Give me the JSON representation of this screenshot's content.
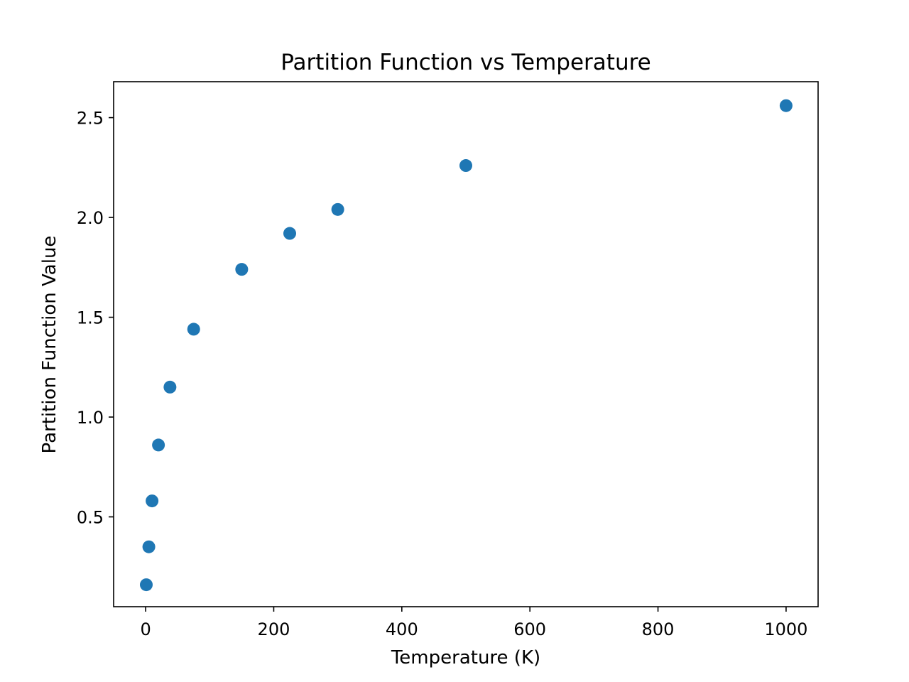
{
  "chart_data": {
    "type": "scatter",
    "title": "Partition Function vs Temperature",
    "xlabel": "Temperature (K)",
    "ylabel": "Partition Function Value",
    "xlim": [
      -50,
      1050
    ],
    "ylim": [
      0.05,
      2.68
    ],
    "xticks": [
      0,
      200,
      400,
      600,
      800,
      1000
    ],
    "xtick_labels": [
      "0",
      "200",
      "400",
      "600",
      "800",
      "1000"
    ],
    "yticks": [
      0.5,
      1.0,
      1.5,
      2.0,
      2.5
    ],
    "ytick_labels": [
      "0.5",
      "1.0",
      "1.5",
      "2.0",
      "2.5"
    ],
    "grid": false,
    "series": [
      {
        "color": "#1f77b4",
        "points": [
          {
            "x": 1,
            "y": 0.16
          },
          {
            "x": 5,
            "y": 0.35
          },
          {
            "x": 10,
            "y": 0.58
          },
          {
            "x": 20,
            "y": 0.86
          },
          {
            "x": 38,
            "y": 1.15
          },
          {
            "x": 75,
            "y": 1.44
          },
          {
            "x": 150,
            "y": 1.74
          },
          {
            "x": 225,
            "y": 1.92
          },
          {
            "x": 300,
            "y": 2.04
          },
          {
            "x": 500,
            "y": 2.26
          },
          {
            "x": 1000,
            "y": 2.56
          }
        ]
      }
    ]
  }
}
